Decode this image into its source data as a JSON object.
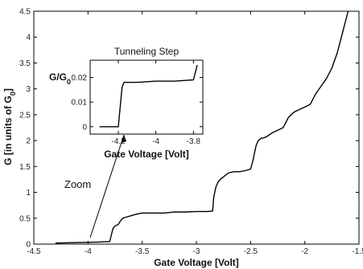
{
  "chart_data": [
    {
      "type": "line",
      "xlabel": "Gate Voltage [Volt]",
      "ylabel_main": "G [in units of G",
      "ylabel_sub": "0",
      "ylabel_end": "]",
      "xlim": [
        -4.5,
        -1.5
      ],
      "ylim": [
        0,
        4.5
      ],
      "x_ticks": [
        "-4.5",
        "-4",
        "-3.5",
        "-3",
        "-2.5",
        "-2",
        "-1.5"
      ],
      "y_ticks": [
        "0",
        "0.5",
        "1",
        "1.5",
        "2",
        "2.5",
        "3",
        "3.5",
        "4",
        "4.5"
      ],
      "annotation": "Zoom",
      "series": [
        {
          "x": [
            -4.3,
            -4.1,
            -3.9,
            -3.8,
            -3.77,
            -3.75,
            -3.72,
            -3.7,
            -3.68,
            -3.65,
            -3.6,
            -3.55,
            -3.5,
            -3.4,
            -3.3,
            -3.2,
            -3.1,
            -3.0,
            -2.9,
            -2.85,
            -2.84,
            -2.82,
            -2.8,
            -2.78,
            -2.75,
            -2.72,
            -2.7,
            -2.65,
            -2.6,
            -2.55,
            -2.5,
            -2.48,
            -2.45,
            -2.43,
            -2.4,
            -2.38,
            -2.35,
            -2.3,
            -2.25,
            -2.2,
            -2.15,
            -2.1,
            -2.05,
            -2.0,
            -1.95,
            -1.9,
            -1.85,
            -1.8,
            -1.75,
            -1.7,
            -1.65,
            -1.6
          ],
          "y": [
            0.02,
            0.03,
            0.04,
            0.05,
            0.3,
            0.35,
            0.38,
            0.45,
            0.5,
            0.52,
            0.55,
            0.58,
            0.6,
            0.6,
            0.6,
            0.62,
            0.62,
            0.63,
            0.63,
            0.64,
            0.9,
            1.1,
            1.2,
            1.25,
            1.3,
            1.35,
            1.38,
            1.4,
            1.4,
            1.42,
            1.45,
            1.6,
            1.9,
            2.0,
            2.05,
            2.05,
            2.08,
            2.15,
            2.2,
            2.25,
            2.45,
            2.55,
            2.6,
            2.65,
            2.7,
            2.9,
            3.05,
            3.2,
            3.4,
            3.7,
            4.1,
            4.5
          ]
        }
      ]
    },
    {
      "type": "line",
      "title": "Tunneling Step",
      "ylabel_main": "G/G",
      "ylabel_sub": "0",
      "xlabel": "Gate Voltage [Volt]",
      "xlim": [
        -4.35,
        -3.75
      ],
      "ylim": [
        -0.003,
        0.027
      ],
      "x_ticks": [
        "-4.2",
        "-4",
        "-3.8"
      ],
      "y_ticks": [
        "0",
        "0.01",
        "0.02"
      ],
      "series": [
        {
          "x": [
            -4.3,
            -4.2,
            -4.19,
            -4.18,
            -4.17,
            -4.1,
            -4.0,
            -3.9,
            -3.8,
            -3.79,
            -3.78
          ],
          "y": [
            0.0,
            0.0,
            0.008,
            0.016,
            0.018,
            0.018,
            0.0185,
            0.0185,
            0.019,
            0.022,
            0.025
          ]
        }
      ]
    }
  ]
}
